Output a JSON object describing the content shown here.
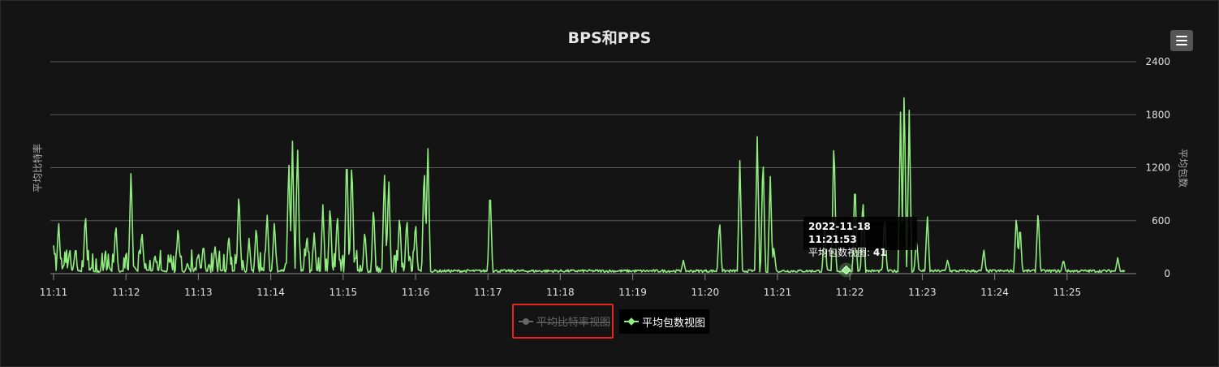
{
  "chart_data": {
    "type": "line",
    "title": "BPS和PPS",
    "y_left_label": "平均比特率",
    "y_right_label": "平均包数",
    "yticks": [
      0,
      600,
      1200,
      1800,
      2400
    ],
    "ytick_labels": [
      "0",
      "600",
      "1200",
      "1800",
      "2400"
    ],
    "ylim": [
      0,
      2400
    ],
    "xlim": [
      0,
      14.8
    ],
    "xticks": [
      0,
      1,
      2,
      3,
      4,
      5,
      6,
      7,
      8,
      9,
      10,
      11,
      12,
      13,
      14
    ],
    "xtick_labels": [
      "11:11",
      "11:12",
      "11:13",
      "11:14",
      "11:15",
      "11:16",
      "11:17",
      "11:18",
      "11:19",
      "11:20",
      "11:21",
      "11:22",
      "11:23",
      "11:24",
      "11:25"
    ],
    "grid": "horizontal",
    "legend_position": "bottom",
    "series": [
      {
        "name": "平均比特率视图",
        "hidden": true,
        "values": []
      },
      {
        "name": "平均包数视图",
        "color": "#90ee7e",
        "peaks": [
          [
            0.0,
            320
          ],
          [
            0.07,
            600
          ],
          [
            0.14,
            100
          ],
          [
            0.22,
            250
          ],
          [
            0.3,
            260
          ],
          [
            0.44,
            700
          ],
          [
            0.76,
            100
          ],
          [
            0.86,
            580
          ],
          [
            1.0,
            100
          ],
          [
            1.07,
            1200
          ],
          [
            1.12,
            80
          ],
          [
            1.22,
            500
          ],
          [
            1.4,
            220
          ],
          [
            1.6,
            160
          ],
          [
            1.72,
            550
          ],
          [
            1.85,
            120
          ],
          [
            2.0,
            240
          ],
          [
            2.07,
            340
          ],
          [
            2.23,
            320
          ],
          [
            2.42,
            450
          ],
          [
            2.56,
            950
          ],
          [
            2.7,
            400
          ],
          [
            2.8,
            550
          ],
          [
            2.95,
            700
          ],
          [
            3.05,
            600
          ],
          [
            3.25,
            1300
          ],
          [
            3.3,
            1500
          ],
          [
            3.37,
            1480
          ],
          [
            3.5,
            450
          ],
          [
            3.6,
            460
          ],
          [
            3.72,
            780
          ],
          [
            3.82,
            800
          ],
          [
            3.92,
            700
          ],
          [
            4.05,
            1420
          ],
          [
            4.12,
            1320
          ],
          [
            4.3,
            500
          ],
          [
            4.42,
            780
          ],
          [
            4.57,
            1180
          ],
          [
            4.63,
            1100
          ],
          [
            4.78,
            680
          ],
          [
            4.88,
            650
          ],
          [
            5.0,
            600
          ],
          [
            5.12,
            1250
          ],
          [
            5.17,
            1500
          ],
          [
            6.03,
            1000
          ],
          [
            8.7,
            150
          ],
          [
            9.2,
            620
          ],
          [
            9.48,
            1280
          ],
          [
            9.72,
            1550
          ],
          [
            9.8,
            1360
          ],
          [
            9.9,
            1100
          ],
          [
            9.95,
            300
          ],
          [
            10.65,
            580
          ],
          [
            10.78,
            1570
          ],
          [
            11.07,
            1080
          ],
          [
            11.18,
            880
          ],
          [
            11.48,
            660
          ],
          [
            11.7,
            1830
          ],
          [
            11.75,
            2110
          ],
          [
            11.82,
            1850
          ],
          [
            11.92,
            400
          ],
          [
            12.07,
            680
          ],
          [
            12.35,
            160
          ],
          [
            12.85,
            280
          ],
          [
            13.3,
            680
          ],
          [
            13.35,
            560
          ],
          [
            13.6,
            740
          ],
          [
            13.95,
            160
          ],
          [
            14.7,
            180
          ]
        ]
      }
    ],
    "tooltip": {
      "date": "2022-11-18 11:21:53",
      "label": "平均包数视图",
      "value": "41",
      "x": 10.95,
      "y": 41
    }
  }
}
